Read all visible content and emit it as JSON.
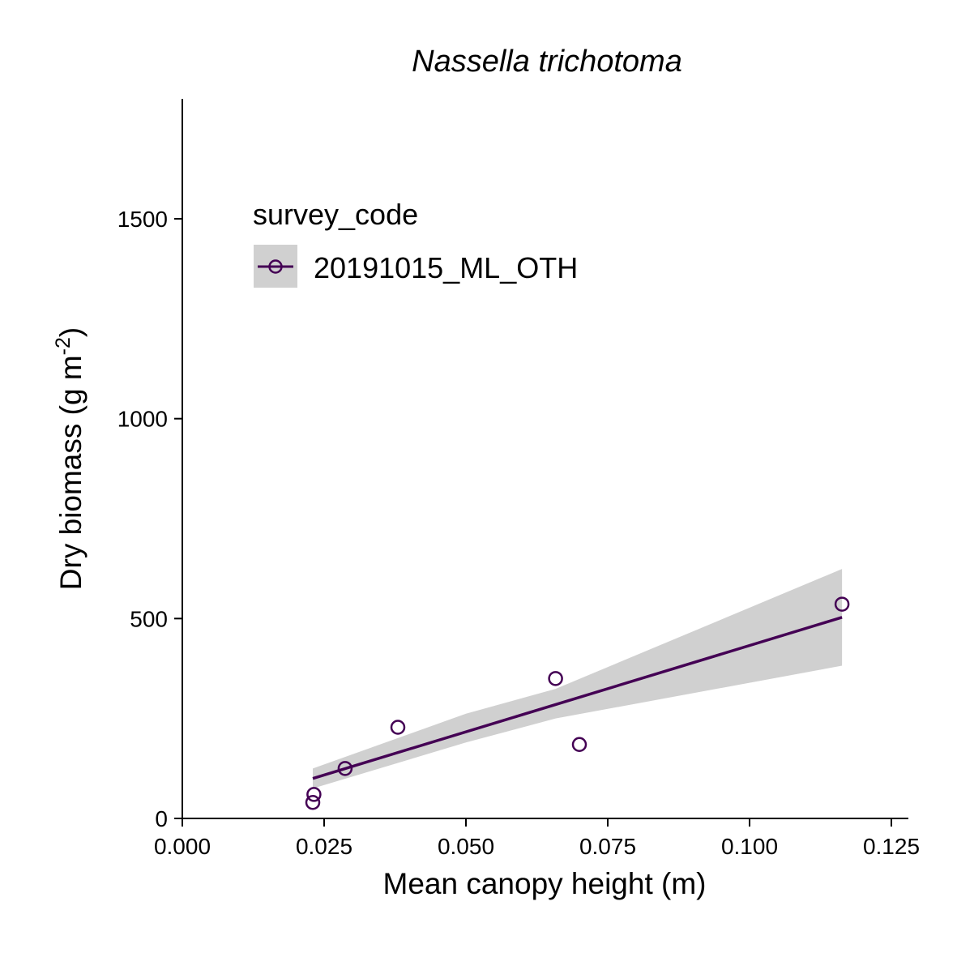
{
  "chart_data": {
    "type": "scatter",
    "title": "Nassella trichotoma",
    "xlabel": "Mean canopy height (m)",
    "ylabel_main": "Dry biomass (g m",
    "ylabel_sup": "-2",
    "ylabel_close": ")",
    "xlim": [
      0,
      0.128
    ],
    "ylim": [
      0,
      1800
    ],
    "x_ticks": [
      0.0,
      0.025,
      0.05,
      0.075,
      0.1,
      0.125
    ],
    "x_tick_labels": [
      "0.000",
      "0.025",
      "0.050",
      "0.075",
      "0.100",
      "0.125"
    ],
    "y_ticks": [
      0,
      500,
      1000,
      1500
    ],
    "y_tick_labels": [
      "0",
      "500",
      "1000",
      "1500"
    ],
    "legend": {
      "title": "survey_code",
      "placement": "top-left"
    },
    "series": [
      {
        "name": "20191015_ML_OTH",
        "color": "#440154",
        "points": [
          {
            "x": 0.023,
            "y": 40
          },
          {
            "x": 0.0232,
            "y": 60
          },
          {
            "x": 0.0287,
            "y": 125
          },
          {
            "x": 0.038,
            "y": 228
          },
          {
            "x": 0.0658,
            "y": 350
          },
          {
            "x": 0.07,
            "y": 185
          },
          {
            "x": 0.1163,
            "y": 536
          }
        ],
        "fit_line": {
          "x": [
            0.023,
            0.1163
          ],
          "y": [
            100,
            503
          ]
        },
        "confidence_band": {
          "x": [
            0.023,
            0.05,
            0.0658,
            0.1163
          ],
          "upper": [
            125,
            262,
            324,
            624
          ],
          "lower": [
            75,
            190,
            250,
            382
          ]
        }
      }
    ],
    "band_color": "#d0d0d0"
  }
}
